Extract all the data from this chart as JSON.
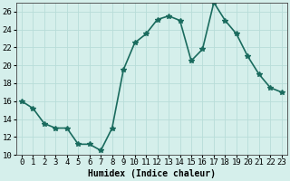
{
  "x": [
    0,
    1,
    2,
    3,
    4,
    5,
    6,
    7,
    8,
    9,
    10,
    11,
    12,
    13,
    14,
    15,
    16,
    17,
    18,
    19,
    20,
    21,
    22,
    23
  ],
  "y": [
    16,
    15.2,
    13.5,
    13.0,
    13.0,
    11.2,
    11.2,
    10.5,
    13.0,
    19.5,
    22.5,
    23.5,
    25.1,
    25.5,
    25.0,
    20.5,
    21.8,
    27.0,
    25.0,
    23.5,
    21.0,
    19.0,
    17.5,
    17.0
  ],
  "line_color": "#1a6b5e",
  "marker": "*",
  "marker_color": "#1a6b5e",
  "bg_color": "#d5efeb",
  "grid_color": "#b8ddd8",
  "xlabel": "Humidex (Indice chaleur)",
  "ylim": [
    10,
    27
  ],
  "xlim": [
    -0.5,
    23.5
  ],
  "yticks": [
    10,
    12,
    14,
    16,
    18,
    20,
    22,
    24,
    26
  ],
  "xtick_labels": [
    "0",
    "1",
    "2",
    "3",
    "4",
    "5",
    "6",
    "7",
    "8",
    "9",
    "10",
    "11",
    "12",
    "13",
    "14",
    "15",
    "16",
    "17",
    "18",
    "19",
    "20",
    "21",
    "22",
    "23"
  ],
  "xlabel_fontsize": 7,
  "tick_fontsize": 6.5,
  "line_width": 1.2,
  "marker_size": 4
}
